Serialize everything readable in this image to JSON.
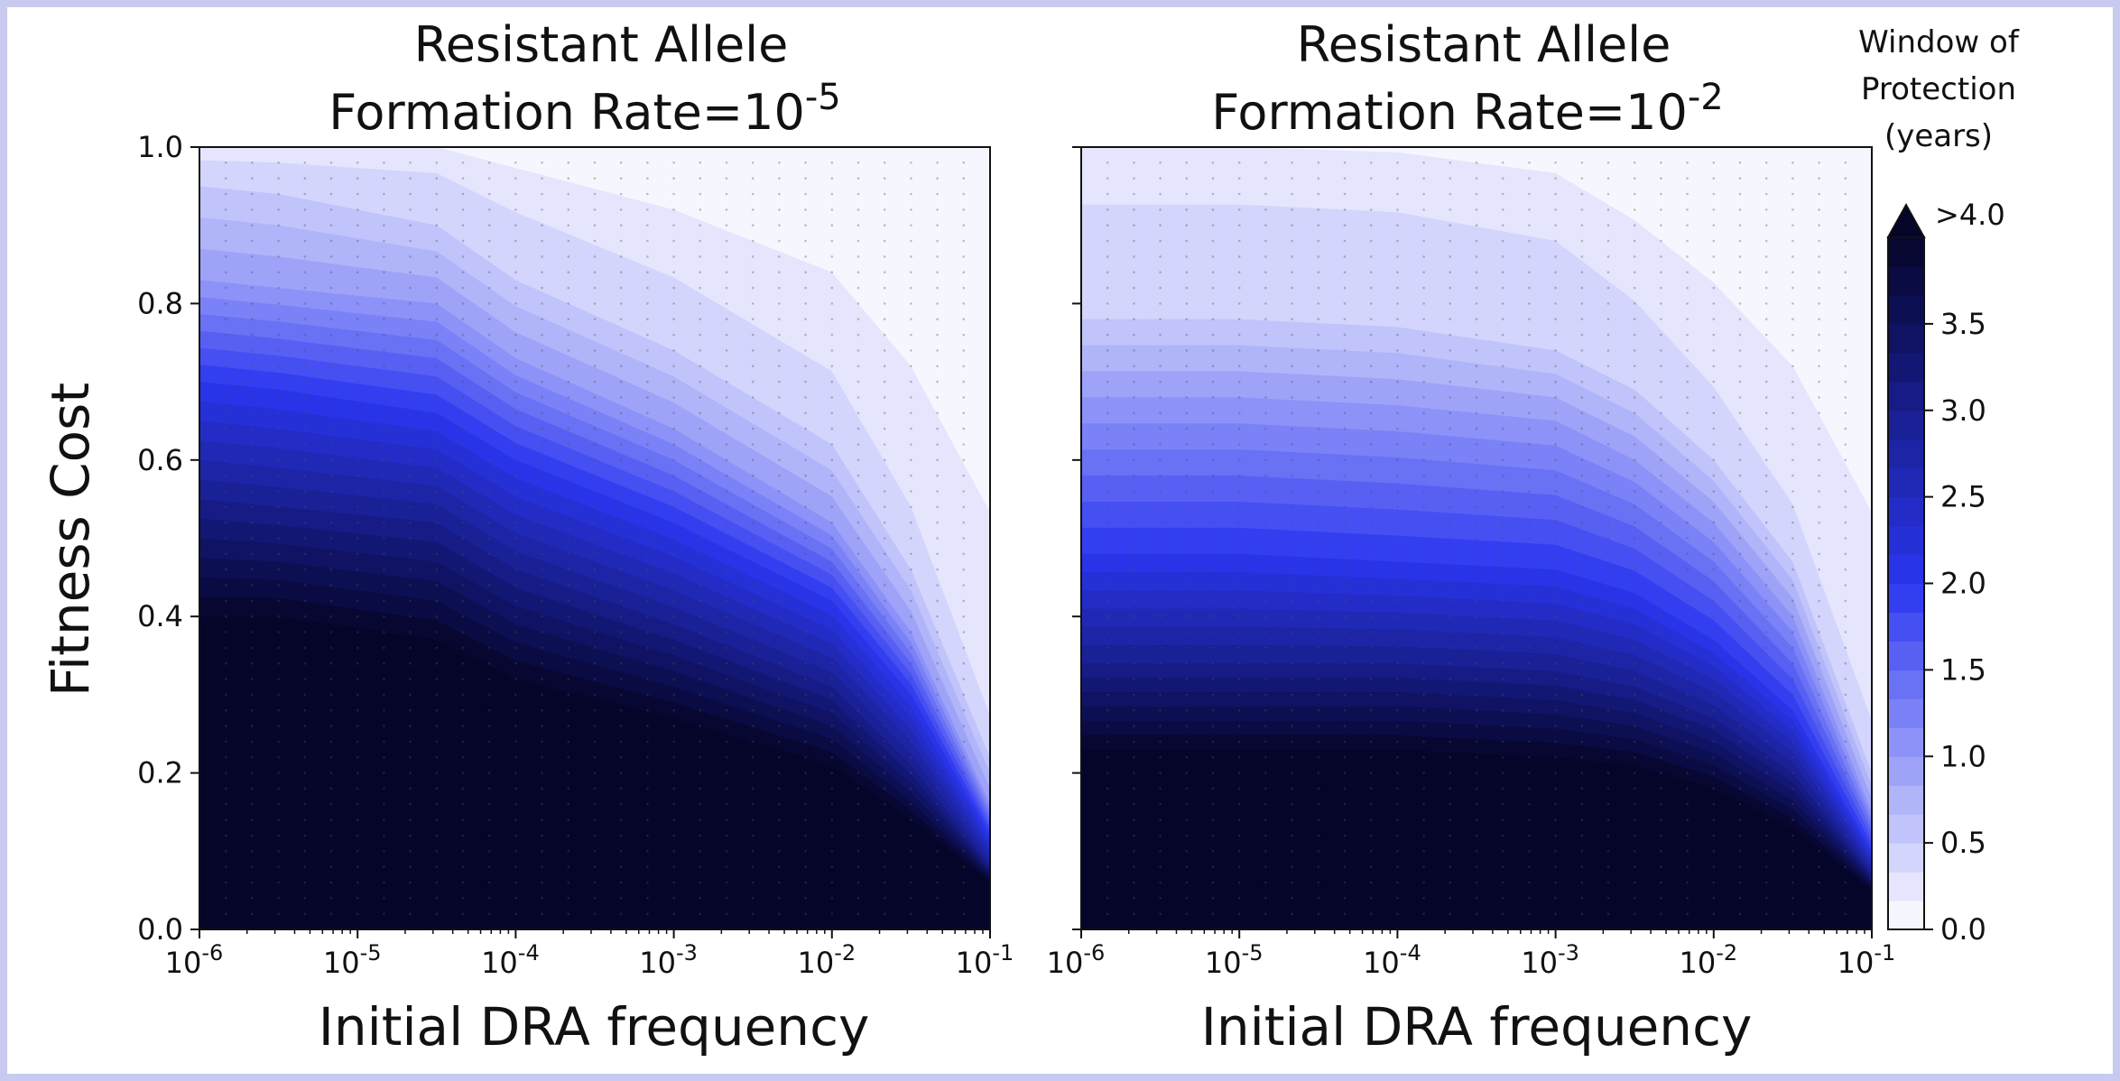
{
  "figure": {
    "colorbar": {
      "title_lines": [
        "Window of",
        "Protection",
        "(years)"
      ],
      "min": 0,
      "max": 4,
      "levels": 24,
      "extend_label": ">4.0",
      "ticks": [
        0.0,
        0.5,
        1.0,
        1.5,
        2.0,
        2.5,
        3.0,
        3.5
      ],
      "tick_labels": [
        "0.0",
        "0.5",
        "1.0",
        "1.5",
        "2.0",
        "2.5",
        "3.0",
        "3.5"
      ],
      "colors": {
        "low": "#ffffff",
        "mid": "#2b36f0",
        "high": "#05052a"
      }
    },
    "ylabel": "Fitness Cost"
  },
  "chart_data": [
    {
      "type": "heatmap",
      "title_lines": [
        "Resistant Allele",
        "Formation Rate=10"
      ],
      "title_exponent": "-5",
      "xlabel": "Initial DRA frequency",
      "ylabel": "Fitness Cost",
      "xscale": "log",
      "xlim": [
        1e-06,
        0.1
      ],
      "ylim": [
        0.0,
        1.0
      ],
      "x_ticks": [
        {
          "base": "10",
          "exp": "-6"
        },
        {
          "base": "10",
          "exp": "-5"
        },
        {
          "base": "10",
          "exp": "-4"
        },
        {
          "base": "10",
          "exp": "-3"
        },
        {
          "base": "10",
          "exp": "-2"
        },
        {
          "base": "10",
          "exp": "-1"
        }
      ],
      "y_ticks": [
        "0.0",
        "0.2",
        "0.4",
        "0.6",
        "0.8",
        "1.0"
      ],
      "z_label": "Window of Protection (years)",
      "contours": [
        {
          "level": 4.0,
          "cost": [
            0.4,
            0.4,
            0.37,
            0.32,
            0.27,
            0.21,
            0.14,
            0.06
          ]
        },
        {
          "level": 3.0,
          "cost": [
            0.55,
            0.54,
            0.52,
            0.46,
            0.39,
            0.31,
            0.21,
            0.08
          ]
        },
        {
          "level": 2.0,
          "cost": [
            0.7,
            0.69,
            0.66,
            0.6,
            0.52,
            0.42,
            0.3,
            0.12
          ]
        },
        {
          "level": 1.0,
          "cost": [
            0.83,
            0.82,
            0.8,
            0.73,
            0.64,
            0.52,
            0.38,
            0.16
          ]
        },
        {
          "level": 0.5,
          "cost": [
            0.95,
            0.94,
            0.9,
            0.83,
            0.74,
            0.62,
            0.46,
            0.22
          ]
        },
        {
          "level": 0.25,
          "cost": [
            1.0,
            1.0,
            1.0,
            0.96,
            0.88,
            0.76,
            0.58,
            0.3
          ]
        }
      ],
      "contour_x_log10": [
        -6,
        -5.5,
        -4.5,
        -4,
        -3,
        -2,
        -1.5,
        -1
      ]
    },
    {
      "type": "heatmap",
      "title_lines": [
        "Resistant Allele",
        "Formation Rate=10"
      ],
      "title_exponent": "-2",
      "xlabel": "Initial DRA frequency",
      "ylabel": "Fitness Cost",
      "xscale": "log",
      "xlim": [
        1e-06,
        0.1
      ],
      "ylim": [
        0.0,
        1.0
      ],
      "x_ticks": [
        {
          "base": "10",
          "exp": "-6"
        },
        {
          "base": "10",
          "exp": "-5"
        },
        {
          "base": "10",
          "exp": "-4"
        },
        {
          "base": "10",
          "exp": "-3"
        },
        {
          "base": "10",
          "exp": "-2"
        },
        {
          "base": "10",
          "exp": "-1"
        }
      ],
      "y_ticks": [
        "0.0",
        "0.2",
        "0.4",
        "0.6",
        "0.8",
        "1.0"
      ],
      "z_label": "Window of Protection (years)",
      "contours": [
        {
          "level": 4.0,
          "cost": [
            0.23,
            0.23,
            0.23,
            0.22,
            0.21,
            0.18,
            0.13,
            0.05
          ]
        },
        {
          "level": 3.0,
          "cost": [
            0.34,
            0.34,
            0.34,
            0.33,
            0.31,
            0.27,
            0.2,
            0.07
          ]
        },
        {
          "level": 2.0,
          "cost": [
            0.48,
            0.48,
            0.47,
            0.46,
            0.43,
            0.37,
            0.28,
            0.1
          ]
        },
        {
          "level": 1.0,
          "cost": [
            0.68,
            0.68,
            0.67,
            0.65,
            0.6,
            0.52,
            0.4,
            0.15
          ]
        },
        {
          "level": 0.5,
          "cost": [
            0.78,
            0.78,
            0.77,
            0.74,
            0.69,
            0.6,
            0.47,
            0.2
          ]
        },
        {
          "level": 0.25,
          "cost": [
            1.0,
            1.0,
            0.99,
            0.95,
            0.86,
            0.74,
            0.58,
            0.3
          ]
        }
      ],
      "contour_x_log10": [
        -6,
        -5,
        -4,
        -3,
        -2.5,
        -2,
        -1.5,
        -1
      ]
    }
  ]
}
